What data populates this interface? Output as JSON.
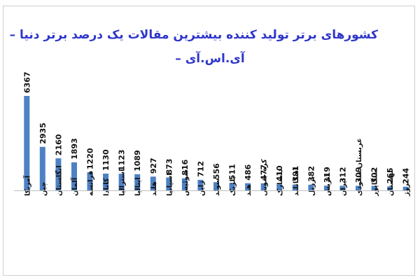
{
  "chart_data": {
    "type": "bar",
    "title_line1": "کشورهای برتر تولید کننده بیشترین مقالات یک درصد برتر دنیا –",
    "title_line2": "آی.اس.آی –",
    "categories": [
      "آمریکا",
      "چین",
      "انگلستان",
      "آلمان",
      "فرانسه",
      "کانادا",
      "استرالیا",
      "ایتالیا",
      "هلند",
      "اسپانیا",
      "سوئیس",
      "ژاپن",
      "سوئد",
      "بلژیک",
      "هند",
      "کره جنوبی",
      "دانمارک",
      "اسکاتلند",
      "برزیل",
      "اتریش",
      "ایران",
      "عربستان سعودی",
      "سنگاپور",
      "لهستان",
      "نروژ"
    ],
    "values": [
      6367,
      2935,
      2160,
      1893,
      1220,
      1130,
      1123,
      1089,
      927,
      873,
      816,
      712,
      556,
      511,
      486,
      477,
      410,
      391,
      382,
      319,
      312,
      309,
      302,
      265,
      244
    ],
    "bar_color": "#4e81c4",
    "axis_color": "#bfbfbf",
    "title_color": "#2f36c9",
    "label_color": "#111111"
  }
}
